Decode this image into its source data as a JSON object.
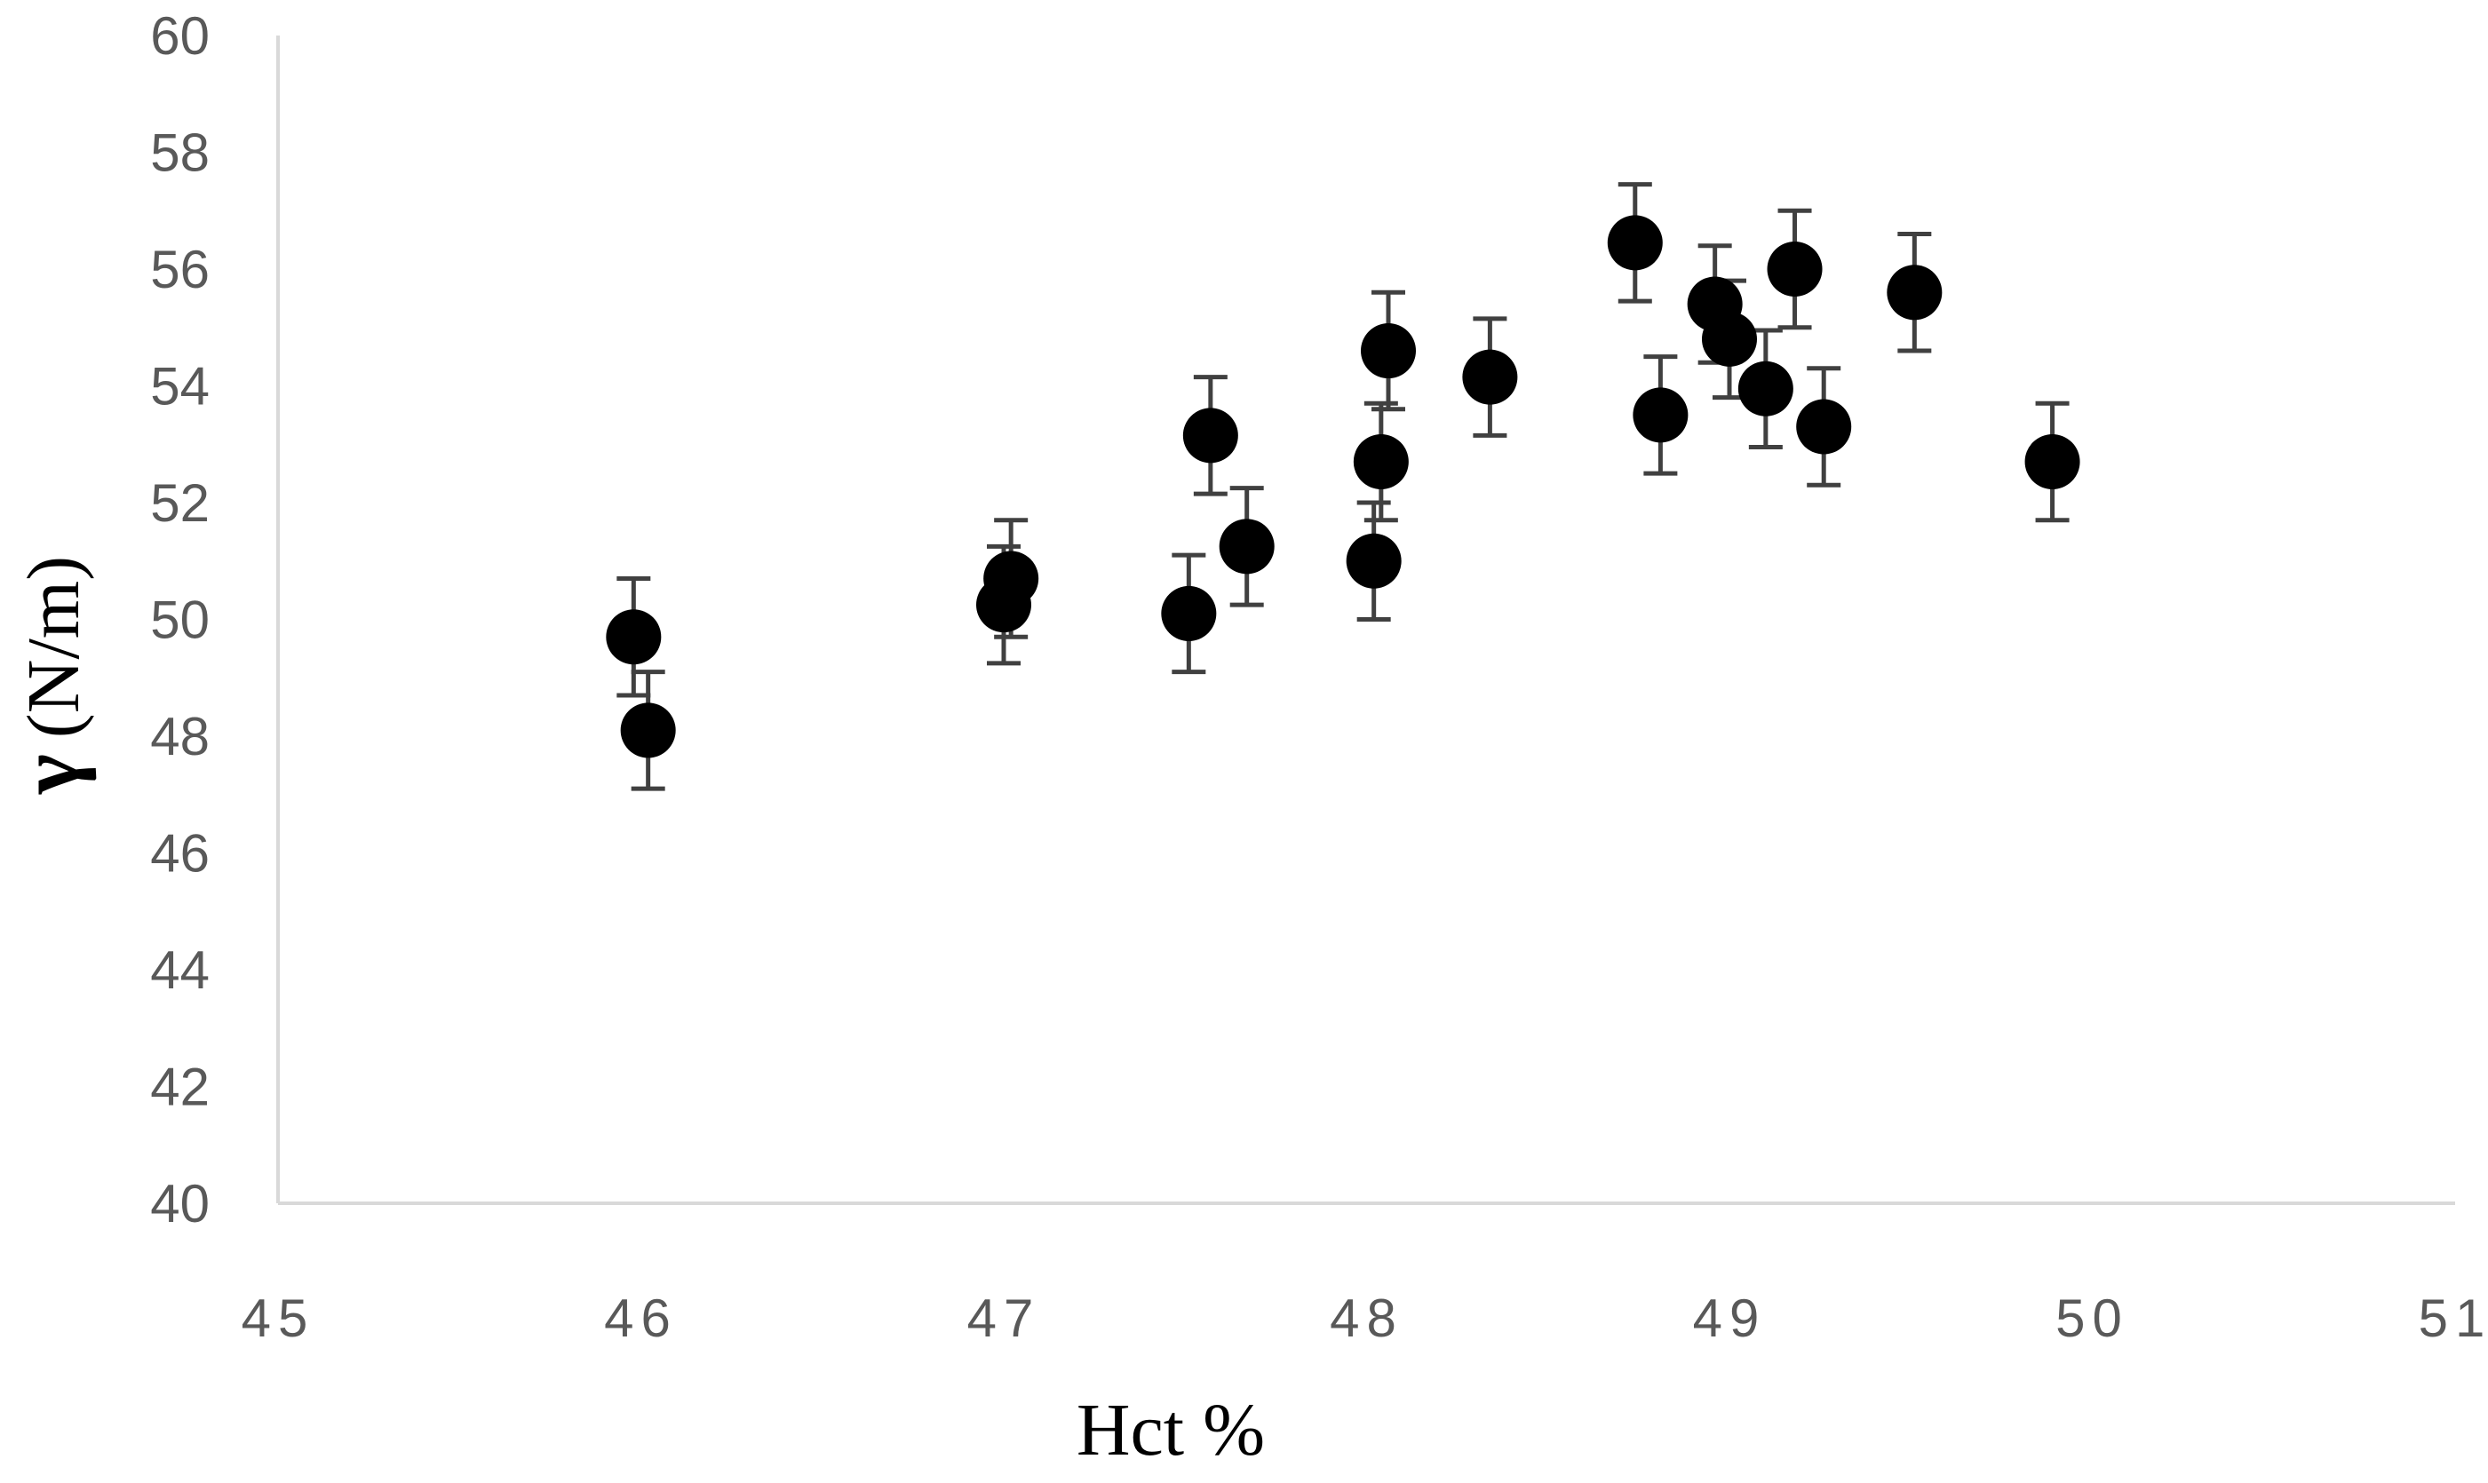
{
  "chart_data": {
    "type": "scatter",
    "title": "",
    "xlabel": "Hct %",
    "ylabel_symbol": "γ",
    "ylabel_unit": "(N/m)",
    "xlim": [
      45,
      51
    ],
    "ylim": [
      40,
      60
    ],
    "xticks": [
      45,
      46,
      47,
      48,
      49,
      50,
      51
    ],
    "yticks": [
      40,
      42,
      44,
      46,
      48,
      50,
      52,
      54,
      56,
      58,
      60
    ],
    "grid": false,
    "legend": "none",
    "marker_color": "#000000",
    "errorbar_color": "#404040",
    "axis_color": "#d9d9d9",
    "points": [
      {
        "x": 45.98,
        "y": 49.7,
        "err": 1.0
      },
      {
        "x": 46.02,
        "y": 48.1,
        "err": 1.0
      },
      {
        "x": 47.0,
        "y": 50.25,
        "err": 1.0
      },
      {
        "x": 47.02,
        "y": 50.7,
        "err": 1.0
      },
      {
        "x": 47.51,
        "y": 50.1,
        "err": 1.0
      },
      {
        "x": 47.57,
        "y": 53.15,
        "err": 1.0
      },
      {
        "x": 47.67,
        "y": 51.25,
        "err": 1.0
      },
      {
        "x": 48.02,
        "y": 51.0,
        "err": 1.0
      },
      {
        "x": 48.04,
        "y": 52.7,
        "err": 1.0
      },
      {
        "x": 48.06,
        "y": 54.6,
        "err": 1.0
      },
      {
        "x": 48.34,
        "y": 54.15,
        "err": 1.0
      },
      {
        "x": 48.74,
        "y": 56.45,
        "err": 1.0
      },
      {
        "x": 48.81,
        "y": 53.5,
        "err": 1.0
      },
      {
        "x": 48.96,
        "y": 55.4,
        "err": 1.0
      },
      {
        "x": 49.0,
        "y": 54.8,
        "err": 1.0
      },
      {
        "x": 49.1,
        "y": 53.95,
        "err": 1.0
      },
      {
        "x": 49.18,
        "y": 56.0,
        "err": 1.0
      },
      {
        "x": 49.26,
        "y": 53.3,
        "err": 1.0
      },
      {
        "x": 49.51,
        "y": 55.6,
        "err": 1.0
      },
      {
        "x": 49.89,
        "y": 52.7,
        "err": 1.0
      }
    ]
  }
}
